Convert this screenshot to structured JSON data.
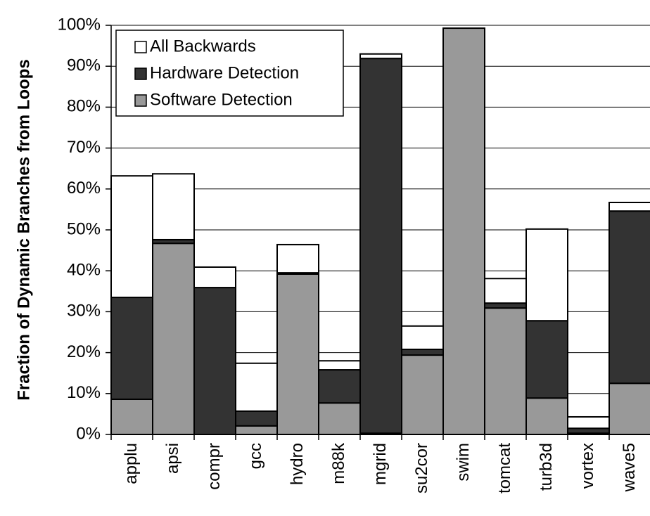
{
  "chart_data": {
    "type": "stacked_bar",
    "y_label": "Fraction of Dynamic Branches from Loops",
    "categories": [
      "applu",
      "apsi",
      "compr",
      "gcc",
      "hydro",
      "m88k",
      "mgrid",
      "su2cor",
      "swim",
      "tomcat",
      "turb3d",
      "vortex",
      "wave5"
    ],
    "series": [
      {
        "name": "Software Detection",
        "color": "#999999",
        "values": [
          8.6,
          46.7,
          0,
          2.1,
          39.2,
          7.7,
          0.3,
          19.4,
          99.3,
          30.9,
          8.9,
          0.3,
          12.5
        ]
      },
      {
        "name": "Hardware Detection",
        "color": "#333333",
        "values": [
          24.9,
          0.9,
          35.9,
          3.6,
          0.3,
          8.1,
          91.6,
          1.4,
          0,
          1.2,
          18.9,
          1.2,
          42.1
        ]
      },
      {
        "name": "All Backwards",
        "color": "#ffffff",
        "values": [
          29.7,
          16.1,
          5.0,
          11.7,
          6.9,
          2.2,
          1.1,
          5.7,
          0,
          6.0,
          22.4,
          2.8,
          2.1
        ]
      }
    ],
    "ylim": [
      0,
      100
    ],
    "yticks": [
      {
        "value": 0,
        "label": "0%"
      },
      {
        "value": 10,
        "label": "10%"
      },
      {
        "value": 20,
        "label": "20%"
      },
      {
        "value": 30,
        "label": "30%"
      },
      {
        "value": 40,
        "label": "40%"
      },
      {
        "value": 50,
        "label": "50%"
      },
      {
        "value": 60,
        "label": "60%"
      },
      {
        "value": 70,
        "label": "70%"
      },
      {
        "value": 80,
        "label": "80%"
      },
      {
        "value": 90,
        "label": "90%"
      },
      {
        "value": 100,
        "label": "100%"
      }
    ],
    "grid": true
  }
}
